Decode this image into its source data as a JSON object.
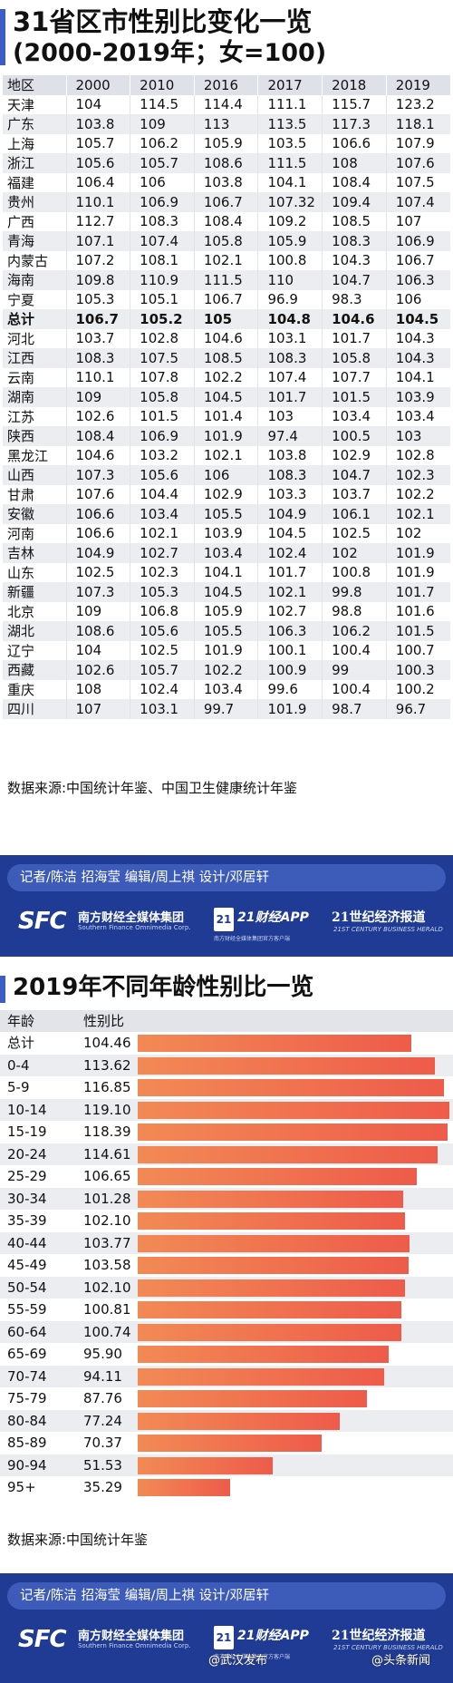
{
  "section1": {
    "title_line1": "31省区市性别比变化一览",
    "title_line2": "(2000-2019年；女=100)",
    "header": [
      "地区",
      "2000",
      "2010",
      "2016",
      "2017",
      "2018",
      "2019"
    ],
    "source": "数据来源:中国统计年鉴、中国卫生健康统计年鉴"
  },
  "chart_data": [
    {
      "type": "table",
      "title": "31省区市性别比变化一览",
      "subtitle": "(2000-2019年；女=100)",
      "columns": [
        "地区",
        "2000",
        "2010",
        "2016",
        "2017",
        "2018",
        "2019"
      ],
      "rows": [
        [
          "天津",
          "104",
          "114.5",
          "114.4",
          "111.1",
          "115.7",
          "123.2"
        ],
        [
          "广东",
          "103.8",
          "109",
          "113",
          "113.5",
          "117.3",
          "118.1"
        ],
        [
          "上海",
          "105.7",
          "106.2",
          "105.9",
          "103.5",
          "106.6",
          "107.9"
        ],
        [
          "浙江",
          "105.6",
          "105.7",
          "108.6",
          "111.5",
          "108",
          "107.6"
        ],
        [
          "福建",
          "106.4",
          "106",
          "103.8",
          "104.1",
          "108.4",
          "107.5"
        ],
        [
          "贵州",
          "110.1",
          "106.9",
          "106.7",
          "107.32",
          "109.4",
          "107.4"
        ],
        [
          "广西",
          "112.7",
          "108.3",
          "108.4",
          "109.2",
          "108.5",
          "107"
        ],
        [
          "青海",
          "107.1",
          "107.4",
          "105.8",
          "105.9",
          "108.3",
          "106.9"
        ],
        [
          "内蒙古",
          "107.2",
          "108.1",
          "102.1",
          "100.8",
          "104.3",
          "106.7"
        ],
        [
          "海南",
          "109.8",
          "110.9",
          "111.5",
          "110",
          "104.7",
          "106.3"
        ],
        [
          "宁夏",
          "105.3",
          "105.1",
          "106.7",
          "96.9",
          "98.3",
          "106"
        ],
        [
          "总计",
          "106.7",
          "105.2",
          "105",
          "104.8",
          "104.6",
          "104.5"
        ],
        [
          "河北",
          "103.7",
          "102.8",
          "104.6",
          "103.1",
          "101.7",
          "104.3"
        ],
        [
          "江西",
          "108.3",
          "107.5",
          "108.5",
          "108.3",
          "105.8",
          "104.3"
        ],
        [
          "云南",
          "110.1",
          "107.8",
          "102.2",
          "107.4",
          "107.7",
          "104.1"
        ],
        [
          "湖南",
          "109",
          "105.8",
          "104.5",
          "101.7",
          "101.5",
          "103.9"
        ],
        [
          "江苏",
          "102.6",
          "101.5",
          "101.4",
          "103",
          "103.4",
          "103.4"
        ],
        [
          "陕西",
          "108.4",
          "106.9",
          "101.9",
          "97.4",
          "100.5",
          "103"
        ],
        [
          "黑龙江",
          "104.6",
          "103.2",
          "102.1",
          "103.8",
          "102.9",
          "102.8"
        ],
        [
          "山西",
          "107.3",
          "105.6",
          "106",
          "108.3",
          "104.7",
          "102.3"
        ],
        [
          "甘肃",
          "107.6",
          "104.4",
          "102.9",
          "103.3",
          "103.7",
          "102.2"
        ],
        [
          "安徽",
          "106.6",
          "103.4",
          "105.5",
          "104.9",
          "106.1",
          "102.1"
        ],
        [
          "河南",
          "106.6",
          "102.1",
          "103.9",
          "104.5",
          "102.5",
          "102"
        ],
        [
          "吉林",
          "104.9",
          "102.7",
          "103.4",
          "102.4",
          "102",
          "101.9"
        ],
        [
          "山东",
          "102.5",
          "102.3",
          "104.1",
          "101.7",
          "100.8",
          "101.9"
        ],
        [
          "新疆",
          "107.3",
          "105.3",
          "104.5",
          "102.1",
          "99.8",
          "101.7"
        ],
        [
          "北京",
          "109",
          "106.8",
          "105.9",
          "102.7",
          "98.8",
          "101.6"
        ],
        [
          "湖北",
          "108.6",
          "105.6",
          "105.5",
          "106.3",
          "106.2",
          "101.5"
        ],
        [
          "辽宁",
          "104",
          "102.5",
          "101.9",
          "100.1",
          "100.4",
          "100.7"
        ],
        [
          "西藏",
          "102.6",
          "105.7",
          "102.2",
          "100.9",
          "99",
          "100.3"
        ],
        [
          "重庆",
          "108",
          "102.4",
          "103.4",
          "99.6",
          "100.4",
          "100.2"
        ],
        [
          "四川",
          "107",
          "103.1",
          "99.7",
          "101.9",
          "98.7",
          "96.7"
        ]
      ],
      "bold_row": "总计"
    },
    {
      "type": "bar",
      "orientation": "horizontal",
      "title": "2019年不同年龄性别比一览",
      "xlabel": "",
      "ylabel": "",
      "header": [
        "年龄",
        "性别比"
      ],
      "categories": [
        "总计",
        "0-4",
        "5-9",
        "10-14",
        "15-19",
        "20-24",
        "25-29",
        "30-34",
        "35-39",
        "40-44",
        "45-49",
        "50-54",
        "55-59",
        "60-64",
        "65-69",
        "70-74",
        "75-79",
        "80-84",
        "85-89",
        "90-94",
        "95+"
      ],
      "values": [
        104.46,
        113.62,
        116.85,
        119.1,
        118.39,
        114.61,
        106.65,
        101.28,
        102.1,
        103.77,
        103.58,
        102.1,
        100.81,
        100.74,
        95.9,
        94.11,
        87.76,
        77.24,
        70.37,
        51.53,
        35.29
      ],
      "value_labels": [
        "104.46",
        "113.62",
        "116.85",
        "119.10",
        "118.39",
        "114.61",
        "106.65",
        "101.28",
        "102.10",
        "103.77",
        "103.58",
        "102.10",
        "100.81",
        "100.74",
        "95.90",
        "94.11",
        "87.76",
        "77.24",
        "70.37",
        "51.53",
        "35.29"
      ],
      "xlim": [
        0,
        119.1
      ],
      "bar_color": "#ee6a4e"
    }
  ],
  "section2": {
    "title": "2019年不同年龄性别比一览",
    "col_age": "年龄",
    "col_ratio": "性别比",
    "source": "数据来源:中国统计年鉴"
  },
  "banner": {
    "credits": "记者/陈洁  招海莹  编辑/周上祺  设计/邓居轩",
    "sfc": "SFC",
    "sfc_cn": "南方财经全媒体集团",
    "sfc_en": "Southern Finance Omnimedia Corp.",
    "c21_badge": "21",
    "c21_app": "21财经APP",
    "c21_sub": "南方财经全媒体集团官方客户端",
    "herald_cn": "21世纪经济报道",
    "herald_en": "21ST CENTURY BUSINESS HERALD"
  },
  "watermarks": {
    "left": "@武汉发布",
    "right": "@头条新闻"
  },
  "colors": {
    "accent": "#3c5ec4",
    "band": "#1f3b94",
    "bar": "#ee6a4e"
  }
}
